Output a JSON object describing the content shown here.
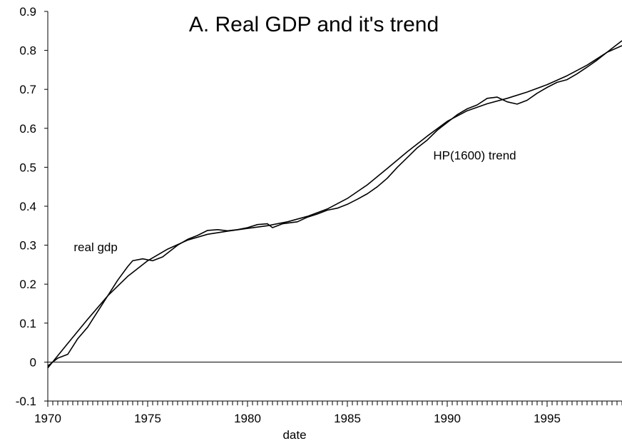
{
  "chart_data": {
    "type": "line",
    "title": "A. Real GDP and it's trend",
    "xlabel": "date",
    "ylabel": "",
    "xlim": [
      1970,
      1998.75
    ],
    "ylim": [
      -0.1,
      0.9
    ],
    "x_ticks": [
      "1970",
      "1975",
      "1980",
      "1985",
      "1990",
      "1995"
    ],
    "y_ticks": [
      "-0.1",
      "0",
      "0.1",
      "0.2",
      "0.3",
      "0.4",
      "0.5",
      "0.6",
      "0.7",
      "0.8",
      "0.9"
    ],
    "zero_line": true,
    "grid": false,
    "annotations": [
      {
        "text": "real gdp",
        "x": 1971.3,
        "y": 0.285
      },
      {
        "text": "HP(1600) trend",
        "x": 1989.3,
        "y": 0.52
      }
    ],
    "series": [
      {
        "name": "real gdp",
        "x": [
          1970,
          1970.5,
          1971,
          1971.5,
          1972,
          1972.5,
          1973,
          1973.5,
          1974,
          1974.25,
          1974.75,
          1975.25,
          1975.75,
          1976,
          1976.5,
          1977,
          1977.5,
          1978,
          1978.5,
          1979,
          1979.5,
          1980,
          1980.5,
          1981,
          1981.25,
          1981.75,
          1982.5,
          1983,
          1983.5,
          1984,
          1984.5,
          1985,
          1985.5,
          1986,
          1986.5,
          1987,
          1987.5,
          1988,
          1988.5,
          1989,
          1989.5,
          1990,
          1990.5,
          1991,
          1991.5,
          1992,
          1992.5,
          1993,
          1993.5,
          1994,
          1994.5,
          1995,
          1995.5,
          1996,
          1996.5,
          1997,
          1997.5,
          1998,
          1998.75
        ],
        "values": [
          -0.01,
          0.01,
          0.02,
          0.06,
          0.09,
          0.13,
          0.17,
          0.21,
          0.245,
          0.26,
          0.265,
          0.26,
          0.27,
          0.28,
          0.3,
          0.315,
          0.325,
          0.338,
          0.34,
          0.337,
          0.34,
          0.345,
          0.353,
          0.355,
          0.345,
          0.355,
          0.36,
          0.372,
          0.38,
          0.39,
          0.395,
          0.405,
          0.418,
          0.432,
          0.45,
          0.472,
          0.5,
          0.525,
          0.55,
          0.57,
          0.595,
          0.615,
          0.635,
          0.65,
          0.66,
          0.677,
          0.68,
          0.668,
          0.662,
          0.672,
          0.69,
          0.705,
          0.718,
          0.725,
          0.74,
          0.757,
          0.775,
          0.795,
          0.825
        ]
      },
      {
        "name": "HP(1600) trend",
        "x": [
          1970,
          1971,
          1972,
          1973,
          1974,
          1975,
          1976,
          1977,
          1978,
          1979,
          1980,
          1981,
          1982,
          1983,
          1984,
          1985,
          1986,
          1987,
          1988,
          1989,
          1990,
          1991,
          1992,
          1993,
          1994,
          1995,
          1996,
          1997,
          1998,
          1998.75
        ],
        "values": [
          -0.015,
          0.048,
          0.11,
          0.17,
          0.22,
          0.26,
          0.29,
          0.313,
          0.328,
          0.336,
          0.343,
          0.35,
          0.36,
          0.374,
          0.393,
          0.42,
          0.455,
          0.497,
          0.54,
          0.58,
          0.618,
          0.645,
          0.663,
          0.677,
          0.693,
          0.712,
          0.735,
          0.762,
          0.795,
          0.812
        ]
      }
    ]
  }
}
